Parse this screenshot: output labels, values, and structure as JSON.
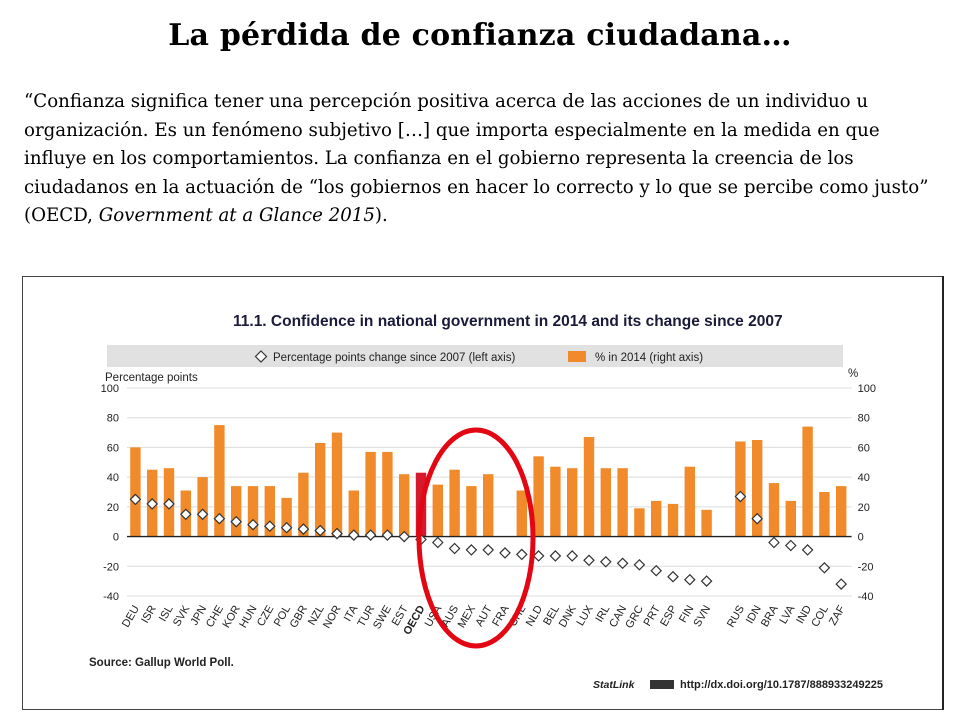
{
  "slide": {
    "title": "La pérdida de confianza ciudadana…",
    "quote_part1": "“Confianza significa tener una percepción positiva acerca de las acciones de un individuo u organización. Es un fenómeno subjetivo […] que importa especialmente en la medida en que influye en los comportamientos. La confianza en el gobierno representa la creencia de los ciudadanos en la actuación de “los gobiernos en hacer lo correcto y lo que se percibe como justo” (OECD, ",
    "quote_italic": "Government at a Glance 2015",
    "quote_part2": ")."
  },
  "figure": {
    "source": "Source: Gallup World Poll.",
    "statlink_label": "StatLink",
    "statlink_url": "http://dx.doi.org/10.1787/888933249225"
  },
  "chart_data": {
    "type": "bar",
    "title": "11.1. Confidence in national government in 2014 and its change since 2007",
    "left_axis_label": "Percentage points",
    "right_axis_label": "%",
    "ylim": [
      -40,
      100
    ],
    "yticks": [
      100,
      80,
      60,
      40,
      20,
      0,
      -20,
      -40
    ],
    "legend": {
      "position": "top",
      "items": [
        {
          "label": "Percentage points change since 2007 (left axis)",
          "marker": "diamond"
        },
        {
          "label": "% in 2014 (right axis)",
          "marker": "bar"
        }
      ]
    },
    "colors": {
      "bar": "#f08a2a",
      "highlight_bar": "#d7192d",
      "marker_fill": "#ffffff",
      "marker_stroke": "#333333",
      "circle": "#e30613",
      "band": "#e1e1e1"
    },
    "highlight_category": "OECD",
    "annotation": "red ellipse around USA, AUS, MEX, AUT",
    "categories": [
      "DEU",
      "ISR",
      "ISL",
      "SVK",
      "JPN",
      "CHE",
      "KOR",
      "HUN",
      "CZE",
      "POL",
      "GBR",
      "NZL",
      "NOR",
      "ITA",
      "TUR",
      "SWE",
      "EST",
      "OECD",
      "USA",
      "AUS",
      "MEX",
      "AUT",
      "FRA",
      "CHL",
      "NLD",
      "BEL",
      "DNK",
      "LUX",
      "IRL",
      "CAN",
      "GRC",
      "PRT",
      "ESP",
      "FIN",
      "SVN",
      "RUS",
      "IDN",
      "BRA",
      "LVA",
      "IND",
      "COL",
      "ZAF"
    ],
    "series": [
      {
        "name": "% in 2014 (right axis)",
        "axis": "right",
        "values": [
          60,
          45,
          46,
          31,
          40,
          75,
          34,
          34,
          34,
          26,
          43,
          63,
          70,
          31,
          57,
          57,
          42,
          43,
          35,
          45,
          34,
          42,
          null,
          31,
          54,
          47,
          46,
          67,
          46,
          46,
          19,
          24,
          22,
          47,
          18,
          64,
          65,
          36,
          24,
          74,
          30,
          34
        ]
      },
      {
        "name": "Percentage points change since 2007 (left axis)",
        "axis": "left",
        "values": [
          25,
          22,
          22,
          15,
          15,
          12,
          10,
          8,
          7,
          6,
          5,
          4,
          2,
          1,
          1,
          1,
          0,
          -2,
          -4,
          -8,
          -9,
          -9,
          -11,
          -12,
          -13,
          -13,
          -13,
          -16,
          -17,
          -18,
          -19,
          -23,
          -27,
          -29,
          -30,
          27,
          12,
          -4,
          -6,
          -9,
          -21,
          -32
        ]
      }
    ]
  }
}
